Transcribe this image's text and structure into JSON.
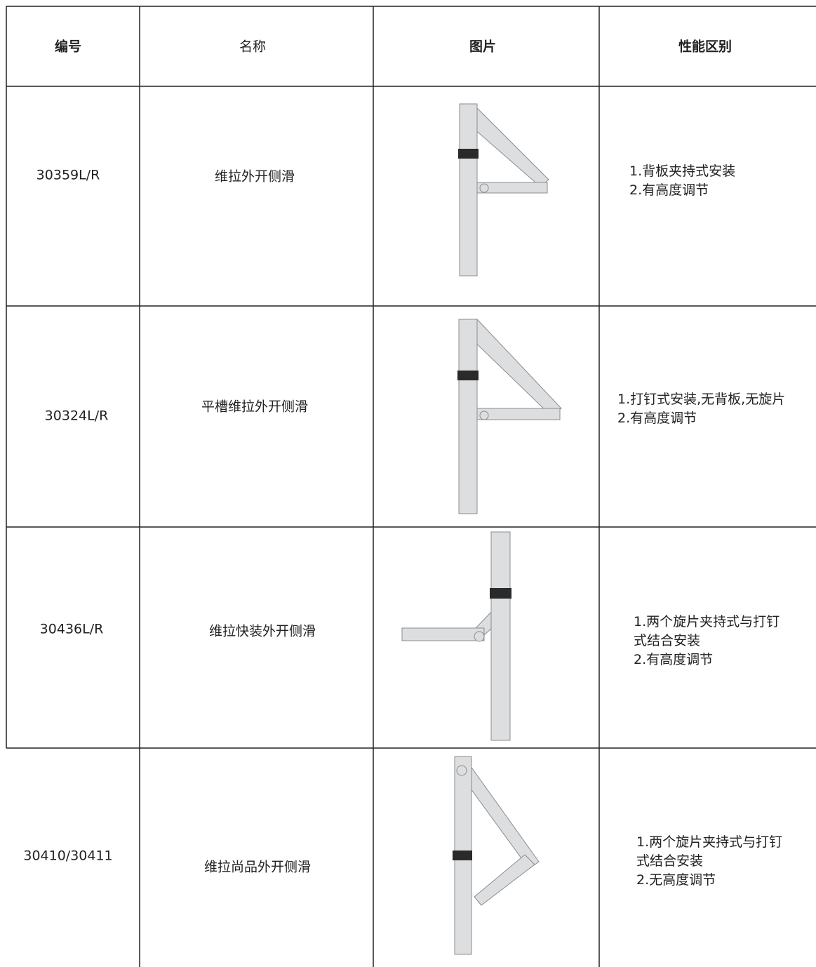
{
  "table": {
    "header": [
      "编号",
      "名称",
      "图片",
      "性能区别"
    ],
    "rows": [
      {
        "code": "30359L/R",
        "name": "维拉外开侧滑",
        "features": [
          "1.背板夹持式安装",
          "2.有高度调节"
        ]
      },
      {
        "code": "30324L/R",
        "name": "平槽维拉外开侧滑",
        "features": [
          "1.打钉式安装,无背板,无旋片",
          "2.有高度调节"
        ]
      },
      {
        "code": "30436L/R",
        "name": "维拉快装外开侧滑",
        "features": [
          "1.两个旋片夹持式与打钉",
          "式结合安装",
          "2.有高度调节"
        ]
      },
      {
        "code": "30410/30411",
        "name": "维拉尚品外开侧滑",
        "features": [
          "1.两个旋片夹持式与打钉",
          "式结合安装",
          "2.无高度调节"
        ]
      }
    ]
  }
}
